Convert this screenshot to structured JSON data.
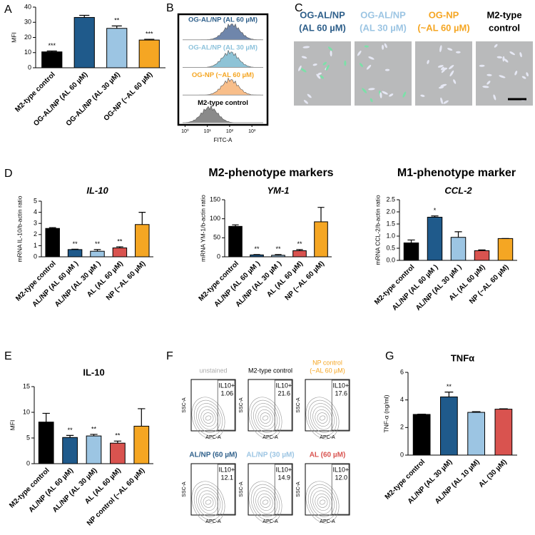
{
  "chart_data": [
    {
      "type": "bar",
      "panel": "A",
      "ylabel": "MFI",
      "categories": [
        "M2-type control",
        "OG-AL/NP (AL 60 µM)",
        "OG-AL/NP (AL 30 µM)",
        "OG-NP (~AL 60 µM)"
      ],
      "values": [
        10.5,
        33.2,
        26,
        18.3
      ],
      "errors": [
        0.6,
        1.4,
        1.6,
        0.5
      ],
      "annotations": [
        "***",
        null,
        "**",
        "***"
      ],
      "colors": [
        "#000000",
        "#1f5a8b",
        "#9cc5e3",
        "#f5a623"
      ],
      "ylim": [
        0,
        40
      ],
      "yticks": [
        0,
        10,
        20,
        30,
        40
      ]
    },
    {
      "type": "ridge",
      "panel": "B",
      "xlabel": "FITC-A",
      "log_x": true,
      "series": [
        {
          "name": "OG-AL/NP (AL 60 µM)",
          "color": "#2e5f8a"
        },
        {
          "name": "OG-AL/NP (AL 30 µM)",
          "color": "#8ec3dc"
        },
        {
          "name": "OG-NP (~AL 60 µM)",
          "color": "#f5a623"
        },
        {
          "name": "M2-type control",
          "color": "#000000"
        }
      ],
      "xlim": [
        0.5,
        5000
      ],
      "xticks": [
        {
          "value": 1,
          "label": "10⁰"
        },
        {
          "value": 10,
          "label": "10¹"
        },
        {
          "value": 100,
          "label": "10²"
        },
        {
          "value": 1000,
          "label": "10³"
        }
      ]
    },
    {
      "type": "bar",
      "panel": "D",
      "title": "IL-10",
      "italic_title": true,
      "ylabel": "mRNA IL-10/b-actin ratio",
      "categories": [
        "M2-type control",
        "AL/NP (AL 60 µM )",
        "AL/NP (AL 30 µM )",
        "AL (AL 60 µM)",
        "NP (~AL 60 µM)"
      ],
      "values": [
        2.55,
        0.65,
        0.5,
        0.8,
        2.9
      ],
      "errors": [
        0.07,
        0.03,
        0.15,
        0.1,
        1.1
      ],
      "annotations": [
        null,
        "**",
        "**",
        "**",
        null
      ],
      "colors": [
        "#000000",
        "#1f5a8b",
        "#9cc5e3",
        "#d9534f",
        "#f5a623"
      ],
      "ylim": [
        0,
        5
      ],
      "yticks": [
        0,
        1,
        2,
        3,
        4,
        5
      ]
    },
    {
      "type": "bar",
      "title": "YM-1",
      "italic_title": true,
      "ylabel": "mRNA YM-1/b-actin ratio",
      "categories": [
        "M2-type control",
        "AL/NP (AL 60 µM )",
        "AL/NP (AL 30 µM )",
        "AL (AL 60 µM)",
        "NP (~AL 60 µM)"
      ],
      "values": [
        80,
        5,
        4,
        16,
        92
      ],
      "errors": [
        4,
        1,
        2,
        3,
        38
      ],
      "annotations": [
        null,
        "**",
        "**",
        "**",
        null
      ],
      "colors": [
        "#000000",
        "#1f5a8b",
        "#9cc5e3",
        "#d9534f",
        "#f5a623"
      ],
      "ylim": [
        0,
        150
      ],
      "yticks": [
        0,
        50,
        100,
        150
      ]
    },
    {
      "type": "bar",
      "title": "CCL-2",
      "italic_title": true,
      "ylabel": "mRNA CCL-2/b-actin ratio",
      "categories": [
        "M2-type control",
        "AL/NP (AL 60 µM )",
        "AL/NP (AL 30 µM )",
        "AL (AL 60 µM)",
        "NP (~AL 60 µM)"
      ],
      "values": [
        0.72,
        1.78,
        0.95,
        0.4,
        0.9
      ],
      "errors": [
        0.12,
        0.05,
        0.23,
        0.03,
        0.0
      ],
      "annotations": [
        null,
        "*",
        null,
        null,
        null
      ],
      "colors": [
        "#000000",
        "#1f5a8b",
        "#9cc5e3",
        "#d9534f",
        "#f5a623"
      ],
      "ylim": [
        0,
        2.5
      ],
      "yticks": [
        {
          "value": 0,
          "label": "0.0"
        },
        {
          "value": 0.5,
          "label": "0.5"
        },
        {
          "value": 1,
          "label": "1.0"
        },
        {
          "value": 1.5,
          "label": "1.5"
        },
        {
          "value": 2,
          "label": "2.0"
        },
        {
          "value": 2.5,
          "label": "2.5"
        }
      ]
    },
    {
      "type": "bar",
      "panel": "E",
      "title": "IL-10",
      "ylabel": "MFI",
      "categories": [
        "M2-type control",
        "AL/NP (AL 60 µM)",
        "AL/NP (AL 30 µM)",
        "AL (AL 60 µM)",
        "NP control (~AL 60 µM)"
      ],
      "values": [
        8.1,
        5.1,
        5.4,
        4.0,
        7.3
      ],
      "errors": [
        1.7,
        0.4,
        0.3,
        0.4,
        3.4
      ],
      "annotations": [
        null,
        "**",
        "**",
        "**",
        null
      ],
      "colors": [
        "#000000",
        "#1f5a8b",
        "#9cc5e3",
        "#d9534f",
        "#f5a623"
      ],
      "ylim": [
        0,
        15
      ],
      "yticks": [
        0,
        5,
        10,
        15
      ]
    },
    {
      "type": "bar",
      "panel": "G",
      "title": "TNFα",
      "ylabel": "TNF-α (ng/ml)",
      "categories": [
        "M2-type control",
        "AL/NP (AL 30 µM)",
        "AL/NP (AL 10 µM)",
        "AL (30 µM)"
      ],
      "values": [
        2.95,
        4.22,
        3.1,
        3.33
      ],
      "errors": [
        0.02,
        0.35,
        0.05,
        0.03
      ],
      "annotations": [
        null,
        "**",
        null,
        null
      ],
      "colors": [
        "#000000",
        "#1f5a8b",
        "#9cc5e3",
        "#d9534f"
      ],
      "ylim": [
        0,
        6
      ],
      "yticks": [
        0,
        2,
        4,
        6
      ]
    }
  ],
  "headings": [
    "M2-phenotype markers",
    "M1-phenotype marker"
  ],
  "panel_c": {
    "panel": "C",
    "images": [
      {
        "lines": [
          "OG-AL/NP",
          "(AL 60 µM)"
        ],
        "color": "#2e5f8a"
      },
      {
        "lines": [
          "OG-AL/NP",
          "(AL 30 µM)"
        ],
        "color": "#9cc5e3"
      },
      {
        "lines": [
          "OG-NP",
          "(~AL 60 µM)"
        ],
        "color": "#f5a623"
      },
      {
        "lines": [
          "M2-type",
          "control"
        ],
        "color": "#000000"
      }
    ]
  },
  "panel_f": {
    "panel": "F",
    "y_axis": "SSC-A",
    "x_axis": "APC-A",
    "gate": "IL10+",
    "plots": [
      {
        "title": [
          "unstained"
        ],
        "color": "#aaaaaa",
        "value": "1.06"
      },
      {
        "title": [
          "M2-type control"
        ],
        "color": "#000000",
        "value": "21.6"
      },
      {
        "title": [
          "NP control",
          "(~AL 60 µM)"
        ],
        "color": "#f5a623",
        "value": "17.6"
      },
      {
        "title": [
          "AL/NP (60 µM)"
        ],
        "color": "#2e5f8a",
        "value": "12.1"
      },
      {
        "title": [
          "AL/NP (30 µM)"
        ],
        "color": "#9cc5e3",
        "value": "14.9"
      },
      {
        "title": [
          "AL (60 µM)"
        ],
        "color": "#d9534f",
        "value": "12.0"
      }
    ]
  }
}
